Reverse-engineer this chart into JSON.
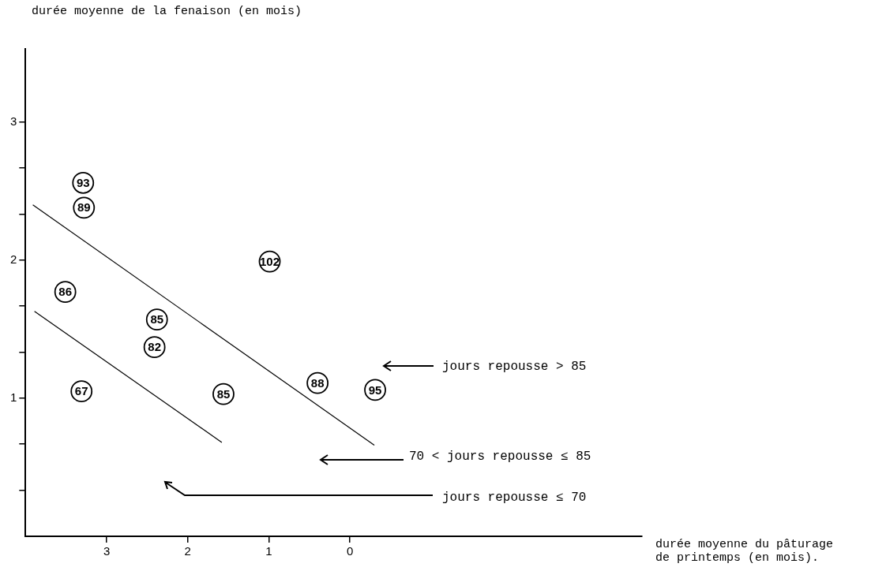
{
  "chart_data": {
    "type": "scatter",
    "xlabel": "durée moyenne du pâturage de printemps (en mois).",
    "ylabel": "durée moyenne de la fenaison (en mois)",
    "xlim": [
      4.0,
      -3.6
    ],
    "xticks": [
      3,
      2,
      1,
      0
    ],
    "ylim": [
      0,
      3.53
    ],
    "yticks": [
      {
        "value": 0.33,
        "label": null
      },
      {
        "value": 0.67,
        "label": null
      },
      1,
      {
        "value": 1.33,
        "label": null
      },
      {
        "value": 1.67,
        "label": null
      },
      2,
      {
        "value": 2.33,
        "label": null
      },
      {
        "value": 2.67,
        "label": null
      },
      3
    ],
    "grid": false,
    "legend": false,
    "series": [
      {
        "marker": "circle",
        "color": "#000000",
        "x": [
          3.29,
          3.28,
          3.51,
          2.38,
          2.41,
          3.31,
          1.56,
          0.99,
          0.4,
          -0.31
        ],
        "values": [
          2.56,
          2.38,
          1.77,
          1.57,
          1.37,
          1.05,
          1.03,
          1.99,
          1.11,
          1.06
        ]
      },
      {
        "type": "line",
        "color": "#000000",
        "x": [
          3.91,
          -0.3
        ],
        "values": [
          2.4,
          0.66
        ]
      },
      {
        "type": "line",
        "color": "#000000",
        "x": [
          3.89,
          1.58
        ],
        "values": [
          1.63,
          0.68
        ]
      }
    ],
    "annotations": [
      {
        "text": "93",
        "x": 3.29,
        "y": 2.56
      },
      {
        "text": "89",
        "x": 3.28,
        "y": 2.38
      },
      {
        "text": "86",
        "x": 3.51,
        "y": 1.77
      },
      {
        "text": "85",
        "x": 2.38,
        "y": 1.57
      },
      {
        "text": "82",
        "x": 2.41,
        "y": 1.37
      },
      {
        "text": "67",
        "x": 3.31,
        "y": 1.05
      },
      {
        "text": "85",
        "x": 1.56,
        "y": 1.03
      },
      {
        "text": "102",
        "x": 0.99,
        "y": 1.99
      },
      {
        "text": "88",
        "x": 0.4,
        "y": 1.11
      },
      {
        "text": "95",
        "x": -0.31,
        "y": 1.06
      },
      "jours repousse > 85",
      "70 < jours repousse ≤ 85",
      "jours repousse ≤ 70"
    ]
  }
}
